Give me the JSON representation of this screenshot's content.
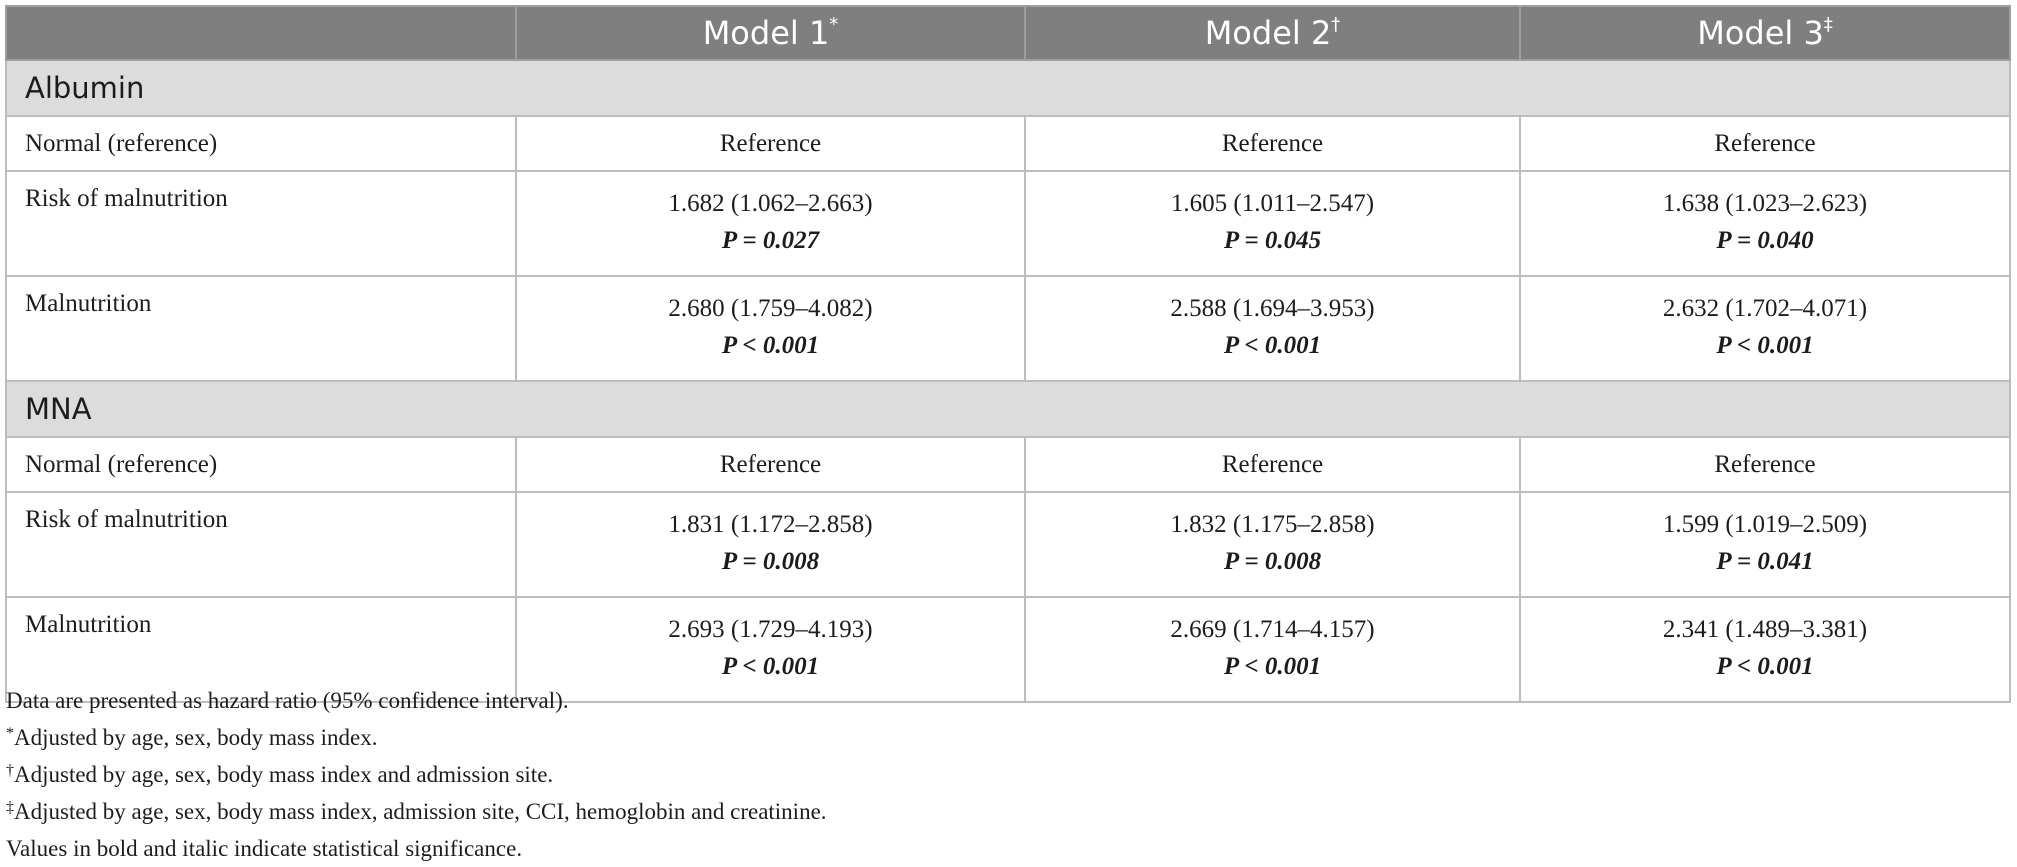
{
  "header": {
    "col0": "",
    "col1": "Model 1",
    "col1_mark": "*",
    "col2": "Model 2",
    "col2_mark": "†",
    "col3": "Model 3",
    "col3_mark": "‡"
  },
  "sections": [
    {
      "title": "Albumin",
      "rows": [
        {
          "label": "Normal (reference)",
          "cells": [
            {
              "value": "Reference",
              "p": ""
            },
            {
              "value": "Reference",
              "p": ""
            },
            {
              "value": "Reference",
              "p": ""
            }
          ]
        },
        {
          "label": "Risk of malnutrition",
          "cells": [
            {
              "value": "1.682 (1.062–2.663)",
              "p": "P = 0.027"
            },
            {
              "value": "1.605 (1.011–2.547)",
              "p": "P = 0.045"
            },
            {
              "value": "1.638 (1.023–2.623)",
              "p": "P = 0.040"
            }
          ]
        },
        {
          "label": "Malnutrition",
          "cells": [
            {
              "value": "2.680 (1.759–4.082)",
              "p": "P < 0.001"
            },
            {
              "value": "2.588 (1.694–3.953)",
              "p": "P < 0.001"
            },
            {
              "value": "2.632 (1.702–4.071)",
              "p": "P < 0.001"
            }
          ]
        }
      ]
    },
    {
      "title": "MNA",
      "rows": [
        {
          "label": "Normal (reference)",
          "cells": [
            {
              "value": "Reference",
              "p": ""
            },
            {
              "value": "Reference",
              "p": ""
            },
            {
              "value": "Reference",
              "p": ""
            }
          ]
        },
        {
          "label": "Risk of malnutrition",
          "cells": [
            {
              "value": "1.831 (1.172–2.858)",
              "p": "P = 0.008"
            },
            {
              "value": "1.832 (1.175–2.858)",
              "p": "P = 0.008"
            },
            {
              "value": "1.599 (1.019–2.509)",
              "p": "P = 0.041"
            }
          ]
        },
        {
          "label": "Malnutrition",
          "cells": [
            {
              "value": "2.693 (1.729–4.193)",
              "p": "P < 0.001"
            },
            {
              "value": "2.669 (1.714–4.157)",
              "p": "P < 0.001"
            },
            {
              "value": "2.341 (1.489–3.381)",
              "p": "P < 0.001"
            }
          ]
        }
      ]
    }
  ],
  "footnotes": {
    "general": "Data are presented as hazard ratio (95% confidence interval).",
    "note1_mark": "*",
    "note1": "Adjusted by age, sex, body mass index.",
    "note2_mark": "†",
    "note2": "Adjusted by age, sex, body mass index and admission site.",
    "note3_mark": "‡",
    "note3": "Adjusted by age, sex, body mass index, admission site, CCI, hemoglobin and creatinine.",
    "bold_note": "Values in bold and italic indicate statistical significance."
  },
  "colors": {
    "header_bg": "#7f7f7f",
    "section_bg": "#dcdcdc",
    "border": "#bdbdbd"
  }
}
